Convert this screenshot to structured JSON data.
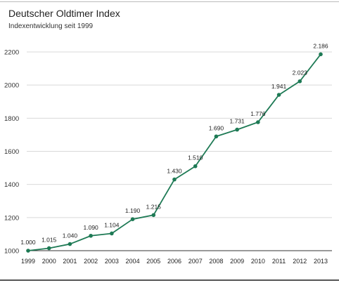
{
  "title": "Deutscher Oldtimer Index",
  "subtitle": "Indexentwicklung seit 1999",
  "chart_data": {
    "type": "line",
    "title": "Deutscher Oldtimer Index",
    "subtitle": "Indexentwicklung seit 1999",
    "xlabel": "",
    "ylabel": "",
    "x": [
      "1999",
      "2000",
      "2001",
      "2002",
      "2003",
      "2004",
      "2005",
      "2006",
      "2007",
      "2008",
      "2009",
      "2010",
      "2011",
      "2012",
      "2013"
    ],
    "series": [
      {
        "values": [
          1000,
          1015,
          1040,
          1090,
          1104,
          1190,
          1215,
          1430,
          1510,
          1690,
          1731,
          1776,
          1941,
          2023,
          2186
        ],
        "labels": [
          "1.000",
          "1.015",
          "1.040",
          "1.090",
          "1.104",
          "1.190",
          "1.215",
          "1.430",
          "1.510",
          "1.690",
          "1.731",
          "1.776",
          "1.941",
          "2.023",
          "2.186"
        ],
        "color": "#1e7a55"
      }
    ],
    "yticks": [
      1000,
      1200,
      1400,
      1600,
      1800,
      2000,
      2200
    ],
    "ylim": [
      1000,
      2280
    ],
    "grid": true,
    "legend": "none"
  }
}
